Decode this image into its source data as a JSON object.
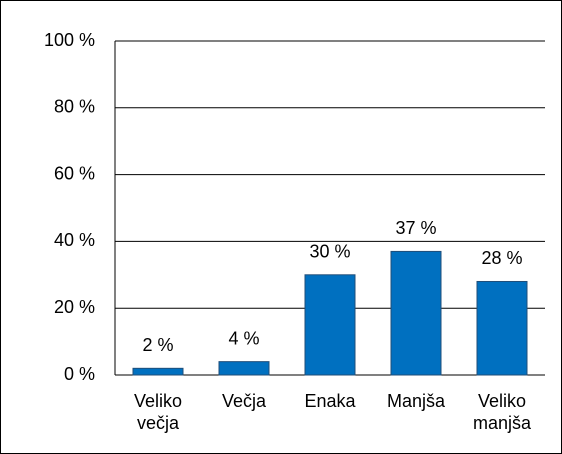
{
  "chart_data": {
    "type": "bar",
    "categories": [
      "Veliko večja",
      "Večja",
      "Enaka",
      "Manjša",
      "Veliko manjša"
    ],
    "values": [
      2,
      4,
      30,
      37,
      28
    ],
    "value_labels": [
      "2 %",
      "4 %",
      "30 %",
      "37 %",
      "28 %"
    ],
    "color": "#0070c0",
    "ylim": [
      0,
      100
    ],
    "yticks": [
      {
        "value": 0,
        "label": "0 %"
      },
      {
        "value": 20,
        "label": "20 %"
      },
      {
        "value": 40,
        "label": "40 %"
      },
      {
        "value": 60,
        "label": "60 %"
      },
      {
        "value": 80,
        "label": "80 %"
      },
      {
        "value": 100,
        "label": "100 %"
      }
    ],
    "grid": true
  }
}
